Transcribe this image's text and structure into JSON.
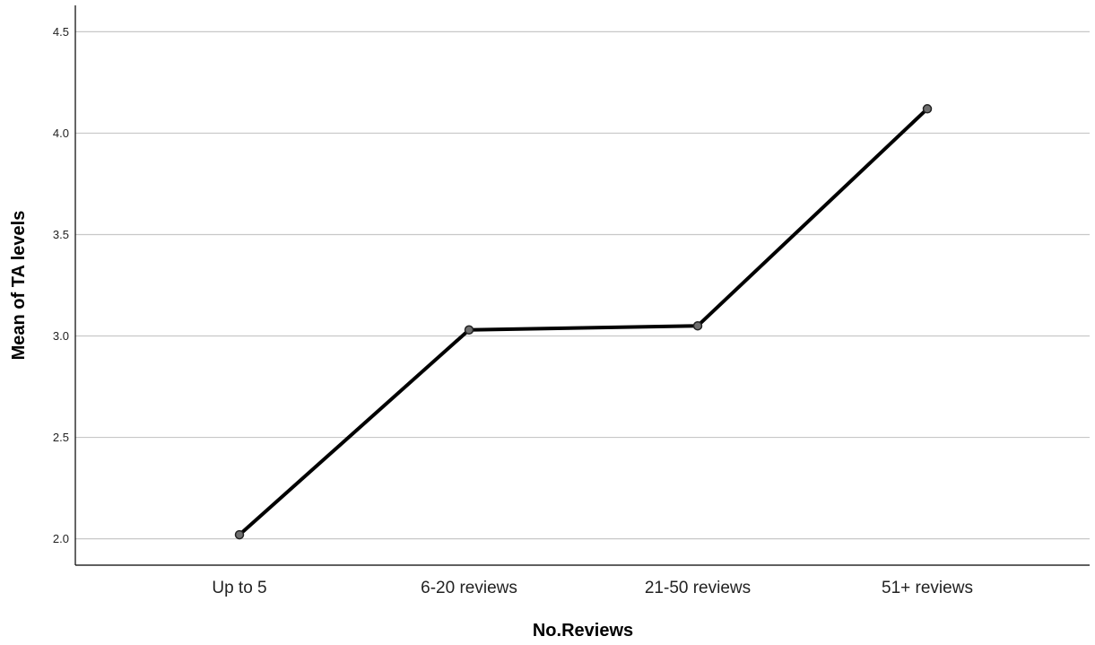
{
  "chart_data": {
    "type": "line",
    "title": "",
    "xlabel": "No.Reviews",
    "ylabel": "Mean of TA levels",
    "categories": [
      "Up to 5",
      "6-20 reviews",
      "21-50 reviews",
      "51+ reviews"
    ],
    "series": [
      {
        "values": [
          2.02,
          3.03,
          3.05,
          4.12
        ]
      }
    ],
    "ylim": [
      1.87,
      4.63
    ],
    "yticks": [
      2.0,
      2.5,
      3.0,
      3.5,
      4.0,
      4.5
    ],
    "ytick_labels": [
      "2.0",
      "2.5",
      "3.0",
      "3.5",
      "4.0",
      "4.5"
    ],
    "grid": true,
    "legend": "none",
    "colors": {
      "line": "#000000",
      "marker_fill": "#6e6e6e",
      "marker_stroke": "#222222",
      "grid": "#c8c8c8",
      "background": "#ffffff"
    }
  }
}
